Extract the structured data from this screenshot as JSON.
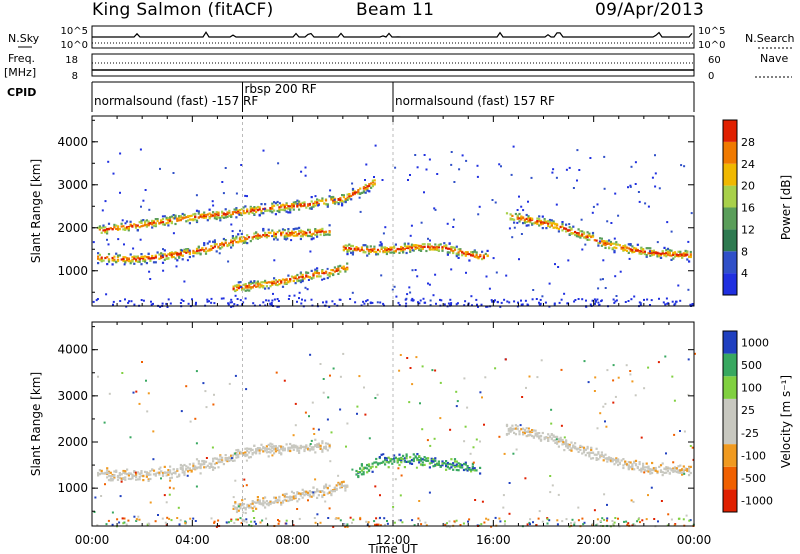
{
  "header": {
    "site": "King Salmon (fitACF)",
    "beam": "Beam 11",
    "date": "09/Apr/2013"
  },
  "panels": {
    "nsky": {
      "label": "N.Sky",
      "ticks_left": [
        "10^5",
        "10^0"
      ],
      "right_label": "N.Search",
      "ticks_right": [
        "10^5",
        "10^0"
      ]
    },
    "freq": {
      "label_top": "Freq.",
      "label_bottom": "[MHz]",
      "ticks_left": [
        "18",
        "8"
      ],
      "right_label": "Nave",
      "ticks_right": [
        "60",
        "0"
      ]
    },
    "cpid": {
      "label": "CPID",
      "segments": [
        {
          "start": 0,
          "end": 6,
          "text": "normalsound (fast) -157 RF"
        },
        {
          "start": 6,
          "end": 12,
          "text": "rbsp 200 RF"
        },
        {
          "start": 12,
          "end": 24,
          "text": "normalsound (fast) 157 RF"
        }
      ]
    }
  },
  "colors": {
    "power_scale": [
      "#2030e0",
      "#3050c8",
      "#2e7a50",
      "#5a9e5a",
      "#a8d04a",
      "#f0b800",
      "#f07a00",
      "#e02000"
    ],
    "velocity_scale": [
      "#e02000",
      "#f06000",
      "#f09a20",
      "#c8c8c0",
      "#c8c8c0",
      "#80d040",
      "#38a860",
      "#2040c0"
    ]
  },
  "chart_data": [
    {
      "type": "heatmap",
      "title": "Power",
      "xlabel": "Time UT",
      "ylabel": "Slant Range [km]",
      "x_ticks": [
        "00:00",
        "04:00",
        "08:00",
        "12:00",
        "16:00",
        "20:00",
        "00:00"
      ],
      "xlim_hours": [
        0,
        24
      ],
      "y_ticks": [
        1000,
        2000,
        3000,
        4000
      ],
      "ylim": [
        180,
        4600
      ],
      "colorbar": {
        "label": "Power [dB]",
        "ticks": [
          4,
          8,
          12,
          16,
          20,
          24,
          28
        ]
      },
      "tracks": [
        {
          "name": "band-morning",
          "points": [
            [
              0.2,
              1330
            ],
            [
              1.5,
              1290
            ],
            [
              2.5,
              1330
            ],
            [
              3.5,
              1420
            ],
            [
              4.5,
              1520
            ],
            [
              5.5,
              1690
            ],
            [
              6.5,
              1840
            ],
            [
              7.5,
              1880
            ],
            [
              8.5,
              1900
            ],
            [
              9.5,
              1960
            ]
          ]
        },
        {
          "name": "band-lower",
          "points": [
            [
              5.6,
              620
            ],
            [
              6.5,
              680
            ],
            [
              7.5,
              770
            ],
            [
              8.5,
              900
            ],
            [
              9.5,
              1000
            ],
            [
              10.2,
              1120
            ]
          ]
        },
        {
          "name": "band-noon",
          "points": [
            [
              10,
              1560
            ],
            [
              11,
              1500
            ],
            [
              12,
              1520
            ],
            [
              13,
              1580
            ],
            [
              14,
              1560
            ],
            [
              15,
              1400
            ],
            [
              15.8,
              1330
            ]
          ]
        },
        {
          "name": "band-evening",
          "points": [
            [
              16.5,
              2300
            ],
            [
              17.5,
              2200
            ],
            [
              18.5,
              2060
            ],
            [
              19.5,
              1870
            ],
            [
              20.5,
              1640
            ],
            [
              21.5,
              1510
            ],
            [
              22.5,
              1430
            ],
            [
              23.9,
              1380
            ]
          ]
        },
        {
          "name": "band-upper",
          "points": [
            [
              0.2,
              1960
            ],
            [
              2,
              2100
            ],
            [
              4,
              2270
            ],
            [
              5.5,
              2360
            ],
            [
              7,
              2480
            ],
            [
              8.5,
              2560
            ],
            [
              10,
              2700
            ],
            [
              11.3,
              3100
            ]
          ]
        }
      ]
    },
    {
      "type": "heatmap",
      "title": "Velocity",
      "xlabel": "Time UT",
      "ylabel": "Slant Range [km]",
      "x_ticks": [
        "00:00",
        "04:00",
        "08:00",
        "12:00",
        "16:00",
        "20:00",
        "00:00"
      ],
      "xlim_hours": [
        0,
        24
      ],
      "y_ticks": [
        1000,
        2000,
        3000,
        4000
      ],
      "ylim": [
        180,
        4600
      ],
      "colorbar": {
        "label": "Velocity [m s⁻¹]",
        "ticks": [
          "1000",
          "500",
          "100",
          "25",
          "-25",
          "-100",
          "-500",
          "-1000"
        ]
      },
      "tracks": [
        {
          "name": "band-morning",
          "points": [
            [
              0.2,
              1330
            ],
            [
              1.5,
              1290
            ],
            [
              2.5,
              1330
            ],
            [
              3.5,
              1420
            ],
            [
              4.5,
              1520
            ],
            [
              5.5,
              1690
            ],
            [
              6.5,
              1840
            ],
            [
              7.5,
              1880
            ],
            [
              8.5,
              1900
            ],
            [
              9.5,
              1960
            ]
          ]
        },
        {
          "name": "band-lower",
          "points": [
            [
              5.6,
              620
            ],
            [
              6.5,
              680
            ],
            [
              7.5,
              770
            ],
            [
              8.5,
              900
            ],
            [
              9.5,
              1000
            ],
            [
              10.2,
              1120
            ]
          ]
        },
        {
          "name": "band-noon-flow",
          "points": [
            [
              10.5,
              1350
            ],
            [
              11.5,
              1600
            ],
            [
              12.5,
              1650
            ],
            [
              13.5,
              1600
            ],
            [
              14.5,
              1500
            ],
            [
              15.5,
              1400
            ]
          ]
        },
        {
          "name": "band-evening",
          "points": [
            [
              16.5,
              2300
            ],
            [
              17.5,
              2200
            ],
            [
              18.5,
              2060
            ],
            [
              19.5,
              1870
            ],
            [
              20.5,
              1640
            ],
            [
              21.5,
              1510
            ],
            [
              22.5,
              1430
            ],
            [
              23.9,
              1380
            ]
          ]
        }
      ]
    }
  ]
}
